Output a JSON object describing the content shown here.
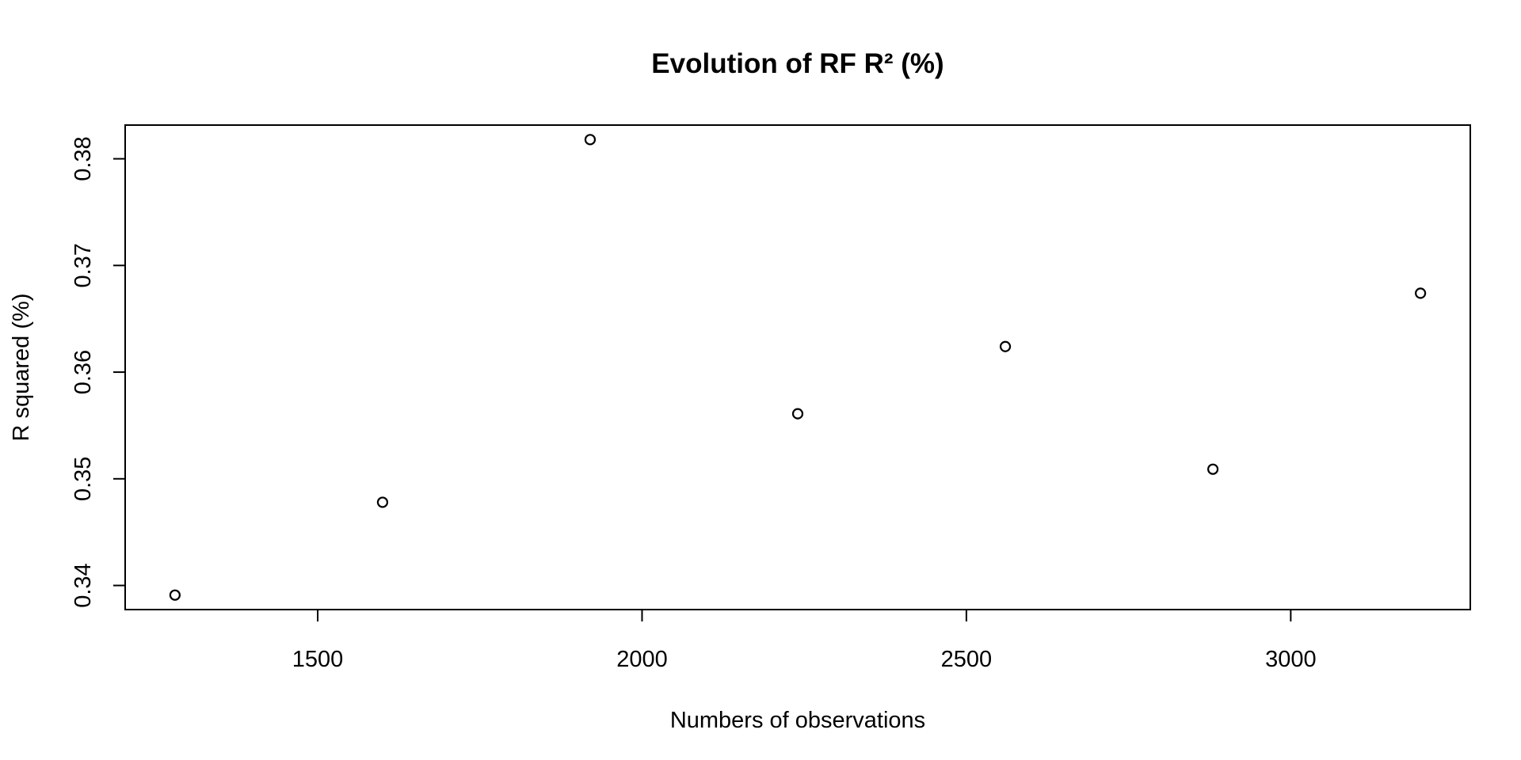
{
  "chart_data": {
    "type": "scatter",
    "title": "Evolution of RF R² (%)",
    "xlabel": "Numbers of observations",
    "ylabel": "R squared (%)",
    "x": [
      1280,
      1600,
      1920,
      2240,
      2560,
      2880,
      3200
    ],
    "y": [
      0.3391,
      0.3478,
      0.3818,
      0.3561,
      0.3624,
      0.3509,
      0.3674
    ],
    "xlim": [
      1203.2,
      3276.8
    ],
    "ylim": [
      0.33774,
      0.38316
    ],
    "xticks": [
      1500,
      2000,
      2500,
      3000
    ],
    "xtick_labels": [
      "1500",
      "2000",
      "2500",
      "3000"
    ],
    "yticks": [
      0.34,
      0.35,
      0.36,
      0.37,
      0.38
    ],
    "ytick_labels": [
      "0.34",
      "0.35",
      "0.36",
      "0.37",
      "0.38"
    ],
    "grid": false,
    "marker": "open-circle",
    "colors": {
      "point": "#000000",
      "axes": "#000000",
      "background": "#ffffff"
    }
  }
}
